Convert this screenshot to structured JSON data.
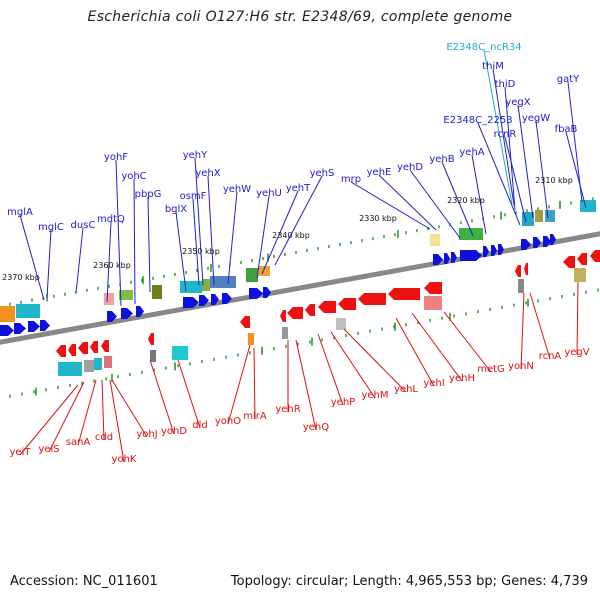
{
  "title": "Escherichia coli O127:H6 str. E2348/69, complete genome",
  "footer": {
    "accession_label": "Accession: NC_011601",
    "stats_label": "Topology: circular; Length: 4,965,553 bp; Genes: 4,739"
  },
  "colors": {
    "forward": "#1010dd",
    "reverse": "#ee1111",
    "ncrna": "#22aacc",
    "backbone": "#888888",
    "tick": "#118811"
  },
  "kbp_marks": [
    "2370 kbp",
    "2360 kbp",
    "2350 kbp",
    "2340 kbp",
    "2330 kbp",
    "2320 kbp",
    "2310 kbp"
  ],
  "top_genes": [
    "mglA",
    "mglC",
    "dusC",
    "mdtQ",
    "yohF",
    "yohC",
    "pbpG",
    "bglX",
    "osmF",
    "yehY",
    "yehX",
    "yehW",
    "yehU",
    "yehT",
    "yehS",
    "mrp",
    "yehE",
    "yehD",
    "yehB",
    "yehA",
    "E2348C_2253",
    "rcnR",
    "yegX",
    "thiD",
    "thiM",
    "E2348C_ncR34",
    "yegW",
    "fbaB",
    "gatY"
  ],
  "bottom_genes": [
    "yeiT",
    "yeiS",
    "sanA",
    "cdd",
    "yohK",
    "yohJ",
    "yohD",
    "dld",
    "yohO",
    "mlrA",
    "yehR",
    "yehQ",
    "yehP",
    "yehM",
    "yehL",
    "yehI",
    "yehH",
    "metG",
    "yohN",
    "rcnA",
    "yegV"
  ]
}
